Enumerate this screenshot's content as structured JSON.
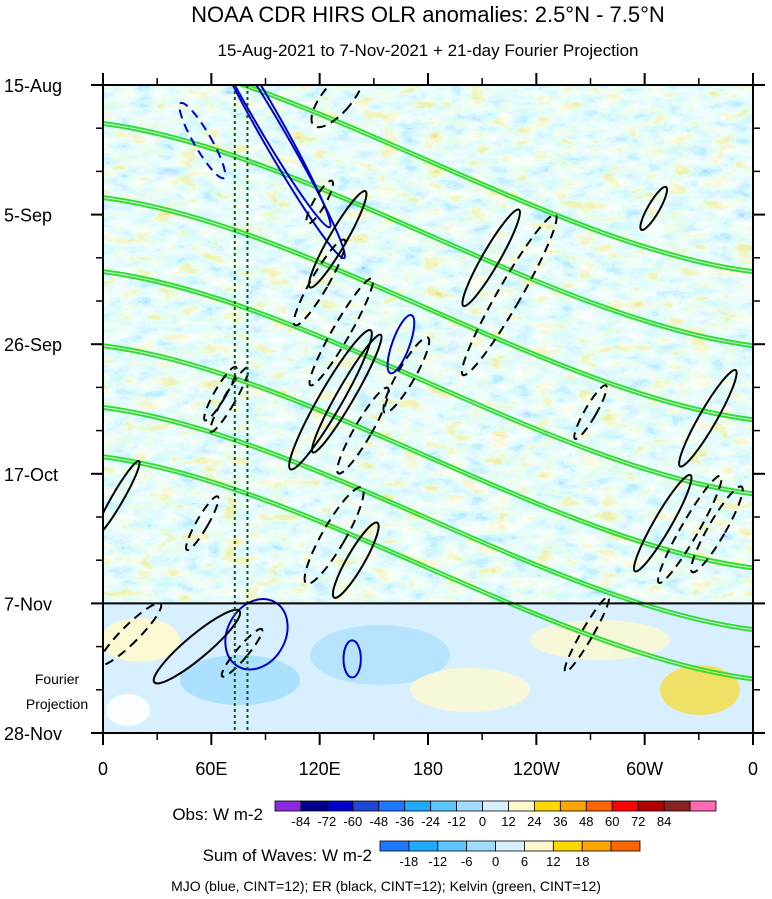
{
  "chart_data": {
    "type": "heatmap",
    "title": "NOAA CDR HIRS OLR anomalies: 2.5°N - 7.5°N",
    "subtitle": "15-Aug-2021 to 7-Nov-2021 + 21-day Fourier Projection",
    "x_axis": {
      "ticks": [
        {
          "lon": 0,
          "label": "0"
        },
        {
          "lon": 60,
          "label": "60E"
        },
        {
          "lon": 120,
          "label": "120E"
        },
        {
          "lon": 180,
          "label": "180"
        },
        {
          "lon": 240,
          "label": "120W"
        },
        {
          "lon": 300,
          "label": "60W"
        },
        {
          "lon": 360,
          "label": "0"
        }
      ],
      "range": [
        0,
        360
      ]
    },
    "y_axis": {
      "ticks": [
        {
          "day": 0,
          "label": "15-Aug"
        },
        {
          "day": 21,
          "label": "5-Sep"
        },
        {
          "day": 42,
          "label": "26-Sep"
        },
        {
          "day": 63,
          "label": "17-Oct"
        },
        {
          "day": 84,
          "label": "7-Nov"
        },
        {
          "day": 105,
          "label": "28-Nov"
        }
      ],
      "range": [
        0,
        105
      ],
      "direction": "top-to-bottom"
    },
    "projection_start_day": 84,
    "projection_label_1": "Fourier",
    "projection_label_2": "Projection",
    "reference_lines_lon": [
      73,
      80
    ],
    "obs_colorbar": {
      "label": "Obs: W m-2",
      "levels": [
        "-84",
        "-72",
        "-60",
        "-48",
        "-36",
        "-24",
        "-12",
        "0",
        "12",
        "24",
        "36",
        "48",
        "60",
        "72",
        "84"
      ],
      "colors": [
        "#8a2be2",
        "#00008b",
        "#0000cd",
        "#1e46d2",
        "#1e78ff",
        "#1eaaff",
        "#5ac8ff",
        "#a0dcff",
        "#d7f0ff",
        "#fffacd",
        "#ffd700",
        "#ffa500",
        "#ff6400",
        "#ff0000",
        "#b40000",
        "#8b2323",
        "#ff69b4"
      ]
    },
    "waves_colorbar": {
      "label": "Sum of Waves: W m-2",
      "levels": [
        "-18",
        "-12",
        "-6",
        "0",
        "6",
        "12",
        "18"
      ],
      "colors": [
        "#1e78ff",
        "#1eaaff",
        "#5ac8ff",
        "#a0dcff",
        "#d7f0ff",
        "#fffacd",
        "#ffd700",
        "#ffa500",
        "#ff6400"
      ]
    },
    "contours": [
      {
        "type": "MJO",
        "color": "#0000cd",
        "paths": [
          {
            "cx": 55,
            "cy": 9,
            "rx": 3,
            "ry": 7,
            "rot": -30,
            "dash": true
          },
          {
            "cx": 88,
            "cy": 4,
            "rx": 4,
            "ry": 22,
            "rot": -30,
            "dash": false
          },
          {
            "cx": 96,
            "cy": 9,
            "rx": 4,
            "ry": 22,
            "rot": -30,
            "dash": false
          },
          {
            "cx": 165,
            "cy": 42,
            "rx": 3,
            "ry": 5,
            "rot": 20,
            "dash": false
          },
          {
            "cx": 85,
            "cy": 89,
            "rx": 10,
            "ry": 6,
            "rot": 30,
            "dash": false
          },
          {
            "cx": 138,
            "cy": 93,
            "rx": 3,
            "ry": 3,
            "rot": 0,
            "dash": false
          }
        ]
      },
      {
        "type": "ER",
        "color": "#000000",
        "paths": [
          {
            "cx": 130,
            "cy": 2,
            "rx": 5,
            "ry": 6,
            "rot": 40,
            "dash": true
          },
          {
            "cx": 120,
            "cy": 19,
            "rx": 2,
            "ry": 4,
            "rot": 30,
            "dash": true
          },
          {
            "cx": 130,
            "cy": 25,
            "rx": 3,
            "ry": 9,
            "rot": 30,
            "dash": false
          },
          {
            "cx": 120,
            "cy": 32,
            "rx": 3,
            "ry": 8,
            "rot": 30,
            "dash": true
          },
          {
            "cx": 132,
            "cy": 40,
            "rx": 3,
            "ry": 10,
            "rot": 30,
            "dash": true
          },
          {
            "cx": 126,
            "cy": 51,
            "rx": 4,
            "ry": 13,
            "rot": 30,
            "dash": false
          },
          {
            "cx": 135,
            "cy": 50,
            "rx": 3,
            "ry": 11,
            "rot": 30,
            "dash": false
          },
          {
            "cx": 144,
            "cy": 56,
            "rx": 3,
            "ry": 8,
            "rot": 30,
            "dash": true
          },
          {
            "cx": 168,
            "cy": 47,
            "rx": 3,
            "ry": 7,
            "rot": 30,
            "dash": true
          },
          {
            "cx": 128,
            "cy": 73,
            "rx": 4,
            "ry": 9,
            "rot": 30,
            "dash": true
          },
          {
            "cx": 140,
            "cy": 77,
            "rx": 3,
            "ry": 7,
            "rot": 30,
            "dash": false
          },
          {
            "cx": 215,
            "cy": 28,
            "rx": 3,
            "ry": 9,
            "rot": 30,
            "dash": false
          },
          {
            "cx": 225,
            "cy": 34,
            "rx": 4,
            "ry": 15,
            "rot": 30,
            "dash": true
          },
          {
            "cx": 305,
            "cy": 20,
            "rx": 2,
            "ry": 4,
            "rot": 30,
            "dash": false
          },
          {
            "cx": 270,
            "cy": 53,
            "rx": 2,
            "ry": 5,
            "rot": 30,
            "dash": true
          },
          {
            "cx": 335,
            "cy": 54,
            "rx": 3,
            "ry": 9,
            "rot": 30,
            "dash": false
          },
          {
            "cx": 310,
            "cy": 71,
            "rx": 3,
            "ry": 9,
            "rot": 30,
            "dash": false
          },
          {
            "cx": 325,
            "cy": 72,
            "rx": 3,
            "ry": 10,
            "rot": 30,
            "dash": true
          },
          {
            "cx": 340,
            "cy": 72,
            "rx": 3,
            "ry": 8,
            "rot": 30,
            "dash": true
          },
          {
            "cx": 8,
            "cy": 67,
            "rx": 2,
            "ry": 7,
            "rot": 30,
            "dash": false
          },
          {
            "cx": 55,
            "cy": 71,
            "rx": 2,
            "ry": 5,
            "rot": 30,
            "dash": true
          },
          {
            "cx": 65,
            "cy": 50,
            "rx": 2,
            "ry": 5,
            "rot": 30,
            "dash": true
          },
          {
            "cx": 70,
            "cy": 51,
            "rx": 2,
            "ry": 6,
            "rot": 30,
            "dash": true
          },
          {
            "cx": 15,
            "cy": 89,
            "rx": 3,
            "ry": 7,
            "rot": 45,
            "dash": true
          },
          {
            "cx": 52,
            "cy": 91,
            "rx": 4,
            "ry": 9,
            "rot": 50,
            "dash": false
          },
          {
            "cx": 77,
            "cy": 92,
            "rx": 2,
            "ry": 5,
            "rot": 40,
            "dash": true
          },
          {
            "cx": 268,
            "cy": 89,
            "rx": 2,
            "ry": 7,
            "rot": 30,
            "dash": true
          }
        ]
      },
      {
        "type": "Kelvin",
        "color": "#32dc32"
      }
    ],
    "legend_note": "MJO (blue, CINT=12); ER (black, CINT=12); Kelvin (green, CINT=12)"
  }
}
